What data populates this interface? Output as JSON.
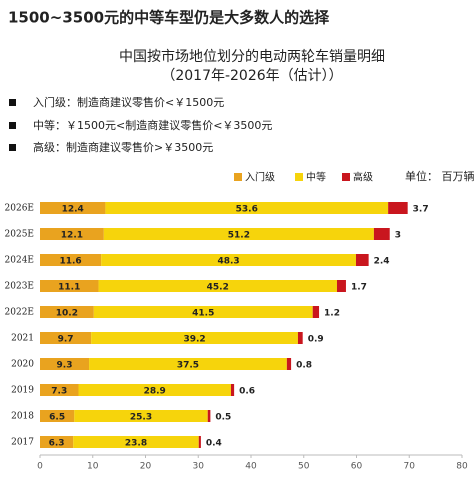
{
  "chart_data": {
    "type": "stacked-barh",
    "headline": "1500~3500元的中等车型仍是大多数人的选择",
    "title": "中国按市场地位划分的电动两轮车销量明细",
    "subtitle": "（2017年-2026年（估计））",
    "notes": [
      "入门级：制造商建议零售价<￥1500元",
      "中等：￥1500元<制造商建议零售价<￥3500元",
      "高级：制造商建议零售价>￥3500元"
    ],
    "unit": "单位： 百万辆",
    "categories": [
      "2026E",
      "2025E",
      "2024E",
      "2023E",
      "2022E",
      "2021",
      "2020",
      "2019",
      "2018",
      "2017"
    ],
    "series": [
      {
        "name": "入门级",
        "color": "#e9a31f",
        "values": [
          12.4,
          12.1,
          11.6,
          11.1,
          10.2,
          9.7,
          9.3,
          7.3,
          6.5,
          6.3
        ]
      },
      {
        "name": "中等",
        "color": "#f6d40c",
        "values": [
          53.6,
          51.2,
          48.3,
          45.2,
          41.5,
          39.2,
          37.5,
          28.9,
          25.3,
          23.8
        ]
      },
      {
        "name": "高级",
        "color": "#c9161e",
        "values": [
          3.7,
          3,
          2.4,
          1.7,
          1.2,
          0.9,
          0.8,
          0.6,
          0.5,
          0.4
        ]
      }
    ],
    "xlim": [
      0,
      80
    ],
    "xticks": [
      0,
      10,
      20,
      30,
      40,
      50,
      60,
      70,
      80
    ]
  }
}
